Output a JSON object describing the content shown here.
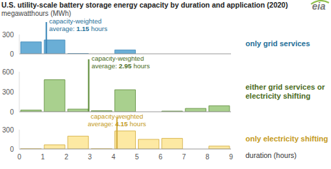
{
  "title": "U.S. utility-scale battery storage energy capacity by duration and application (2020)",
  "subtitle": "megawatthours (MWh)",
  "logo": "eia",
  "chart_data": [
    {
      "type": "histogram",
      "title": "only grid services",
      "bins": [
        0,
        1,
        2,
        3,
        4,
        5,
        6,
        7,
        8,
        9
      ],
      "values": [
        185,
        215,
        5,
        0,
        60,
        0,
        0,
        0,
        0
      ],
      "color": "#6aaed6",
      "xlim": [
        0,
        9
      ],
      "xticks": [
        0,
        1,
        2,
        3,
        4,
        5,
        6,
        7,
        8,
        9
      ],
      "ylim": [
        0,
        300
      ],
      "yticks": [
        0,
        300
      ],
      "tick_labels": "y",
      "annotation": "capacity-weighted",
      "average_label": "average:",
      "average": 1.15,
      "average_unit": "hours"
    },
    {
      "type": "histogram",
      "title": "either grid services or electricity shifting",
      "bins": [
        0,
        1,
        2,
        3,
        4,
        5,
        6,
        7,
        8,
        9
      ],
      "values": [
        25,
        480,
        40,
        15,
        330,
        0,
        10,
        50,
        90
      ],
      "color": "#a9d08e",
      "xlim": [
        0,
        9
      ],
      "xticks": [
        0,
        1,
        2,
        3,
        4,
        5,
        6,
        7,
        8,
        9
      ],
      "ylim": [
        0,
        600
      ],
      "yticks": [
        0,
        300,
        600
      ],
      "tick_labels": "y",
      "annotation": "capacity-weighted",
      "average_label": "average:",
      "average": 2.95,
      "average_unit": "hours"
    },
    {
      "type": "histogram",
      "title": "only electricity shifting",
      "bins": [
        0,
        1,
        2,
        3,
        4,
        5,
        6,
        7,
        8,
        9
      ],
      "values": [
        5,
        65,
        200,
        5,
        280,
        150,
        165,
        0,
        45
      ],
      "color": "#fde9a3",
      "xlim": [
        0,
        9
      ],
      "xticks": [
        0,
        1,
        2,
        3,
        4,
        5,
        6,
        7,
        8,
        9
      ],
      "ylim": [
        0,
        300
      ],
      "yticks": [
        0,
        300
      ],
      "xlabel": "duration (hours)",
      "annotation": "capacity-weighted",
      "average_label": "average:",
      "average": 4.15,
      "average_unit": "hours"
    }
  ]
}
